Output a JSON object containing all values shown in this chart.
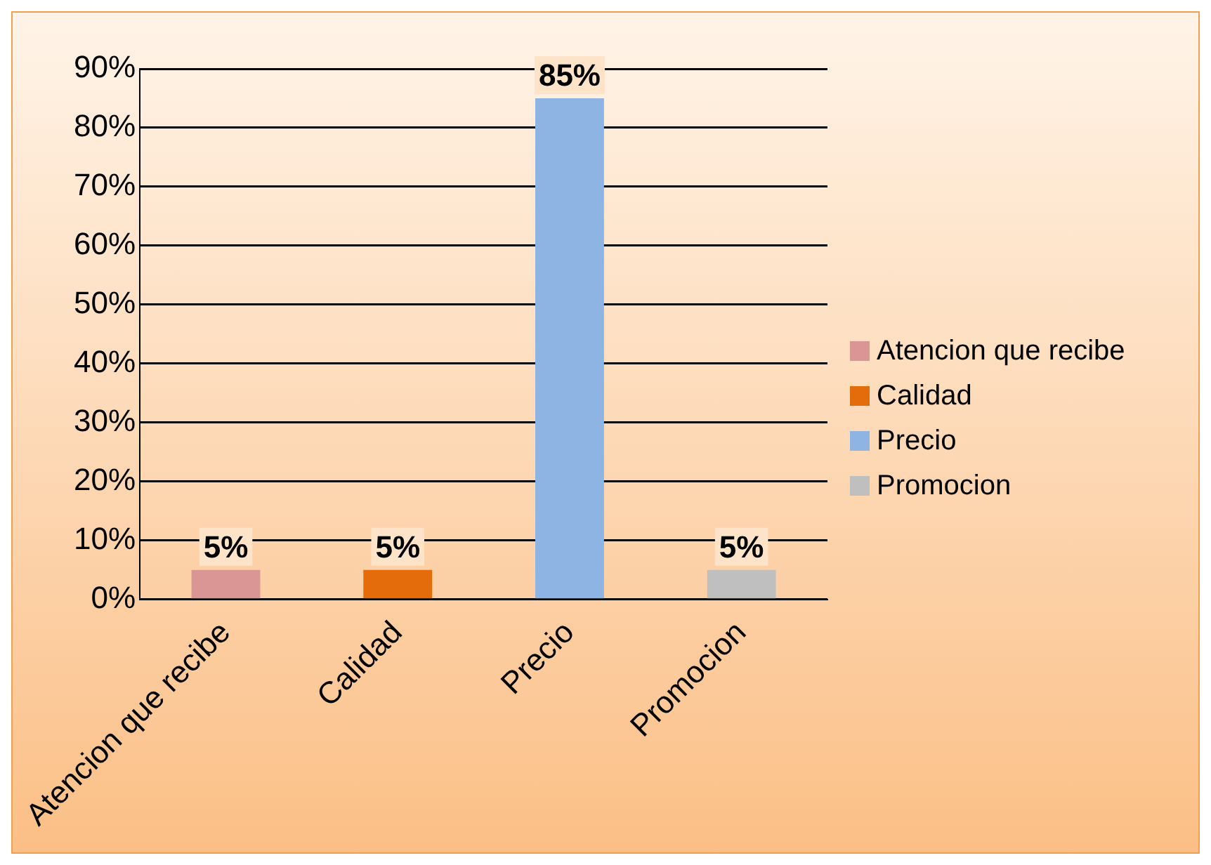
{
  "chart_data": {
    "type": "bar",
    "categories": [
      "Atencion que recibe",
      "Calidad",
      "Precio",
      "Promocion"
    ],
    "series": [
      {
        "name": "Atencion que recibe",
        "color": "#d99694",
        "values": [
          5,
          null,
          null,
          null
        ],
        "value_labels": [
          "5%",
          null,
          null,
          null
        ]
      },
      {
        "name": "Calidad",
        "color": "#e46c0a",
        "values": [
          null,
          5,
          null,
          null
        ],
        "value_labels": [
          null,
          "5%",
          null,
          null
        ]
      },
      {
        "name": "Precio",
        "color": "#8eb4e3",
        "values": [
          null,
          null,
          85,
          null
        ],
        "value_labels": [
          null,
          null,
          "85%",
          null
        ]
      },
      {
        "name": "Promocion",
        "color": "#bfbfbf",
        "values": [
          null,
          null,
          null,
          5
        ],
        "value_labels": [
          null,
          null,
          null,
          "5%"
        ]
      }
    ],
    "stacked": true,
    "ylim": [
      0,
      90
    ],
    "yticks": [
      {
        "value": 0,
        "label": "0%"
      },
      {
        "value": 10,
        "label": "10%"
      },
      {
        "value": 20,
        "label": "20%"
      },
      {
        "value": 30,
        "label": "30%"
      },
      {
        "value": 40,
        "label": "40%"
      },
      {
        "value": 50,
        "label": "50%"
      },
      {
        "value": 60,
        "label": "60%"
      },
      {
        "value": 70,
        "label": "70%"
      },
      {
        "value": 80,
        "label": "80%"
      },
      {
        "value": 90,
        "label": "90%"
      }
    ],
    "grid": "y",
    "legend": "right"
  }
}
